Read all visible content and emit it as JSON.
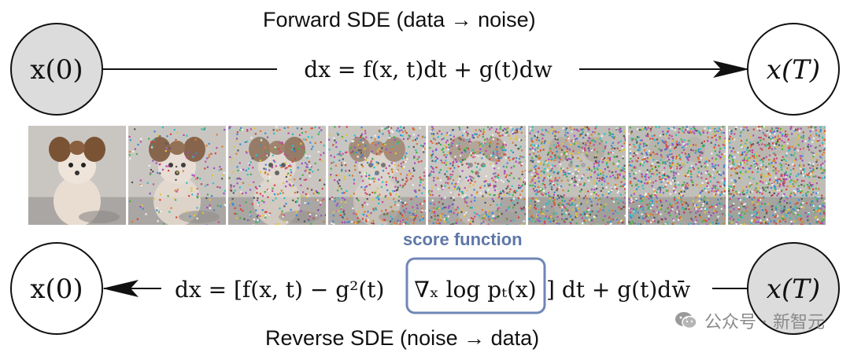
{
  "forward": {
    "caption": "Forward SDE (data → noise)",
    "start_node": "x(0)",
    "end_node": "x(T)",
    "equation": "dx = f(x, t)dt + g(t)dw"
  },
  "reverse": {
    "caption": "Reverse SDE (noise → data)",
    "start_node": "x(T)",
    "end_node": "x(0)",
    "equation_left": "dx = [f(x, t) − g²(t)",
    "score_term": "∇ₓ log pₜ(x)",
    "equation_right": "] dt + g(t)dw̄",
    "score_label": "score function"
  },
  "images": {
    "count": 8,
    "noise_levels": [
      0.0,
      0.18,
      0.38,
      0.55,
      0.72,
      0.9,
      0.97,
      1.0
    ]
  },
  "watermark": {
    "text": "公众号 · 新智元"
  },
  "colors": {
    "node_gray": "#d9d9d9",
    "score_box": "#6f86b6"
  }
}
